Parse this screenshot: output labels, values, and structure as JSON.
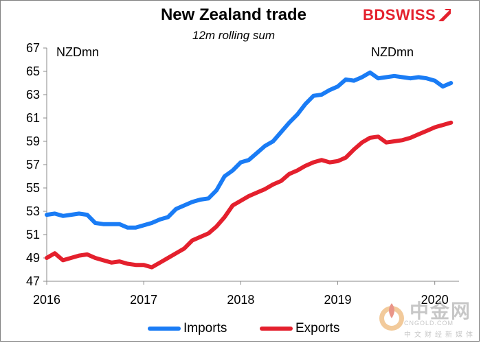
{
  "chart_data": {
    "type": "line",
    "title": "New Zealand trade",
    "subtitle": "12m rolling sum",
    "ylabel_left": "NZDmn",
    "ylabel_right": "NZDmn",
    "xlabel": "",
    "ylim": [
      47,
      67
    ],
    "xlim": [
      2016,
      2020.25
    ],
    "yticks": [
      47,
      49,
      51,
      53,
      55,
      57,
      59,
      61,
      63,
      65,
      67
    ],
    "xticks": [
      {
        "value": 2016,
        "label": "2016"
      },
      {
        "value": 2017,
        "label": "2017"
      },
      {
        "value": 2018,
        "label": "2018"
      },
      {
        "value": 2019,
        "label": "2019"
      },
      {
        "value": 2020,
        "label": "2020"
      }
    ],
    "legend_position": "bottom",
    "series": [
      {
        "name": "Imports",
        "color": "#1a7cf5",
        "x": [
          2016.0,
          2016.083,
          2016.167,
          2016.25,
          2016.333,
          2016.417,
          2016.5,
          2016.583,
          2016.667,
          2016.75,
          2016.833,
          2016.917,
          2017.0,
          2017.083,
          2017.167,
          2017.25,
          2017.333,
          2017.417,
          2017.5,
          2017.583,
          2017.667,
          2017.75,
          2017.833,
          2017.917,
          2018.0,
          2018.083,
          2018.167,
          2018.25,
          2018.333,
          2018.417,
          2018.5,
          2018.583,
          2018.667,
          2018.75,
          2018.833,
          2018.917,
          2019.0,
          2019.083,
          2019.167,
          2019.25,
          2019.333,
          2019.417,
          2019.5,
          2019.583,
          2019.667,
          2019.75,
          2019.833,
          2019.917,
          2020.0,
          2020.083,
          2020.167
        ],
        "values": [
          52.7,
          52.8,
          52.6,
          52.7,
          52.8,
          52.7,
          52.0,
          51.9,
          51.9,
          51.9,
          51.6,
          51.6,
          51.8,
          52.0,
          52.3,
          52.5,
          53.2,
          53.5,
          53.8,
          54.0,
          54.1,
          54.8,
          56.0,
          56.5,
          57.2,
          57.4,
          58.0,
          58.6,
          59.0,
          59.8,
          60.6,
          61.3,
          62.2,
          62.9,
          63.0,
          63.4,
          63.7,
          64.3,
          64.2,
          64.5,
          64.9,
          64.4,
          64.5,
          64.6,
          64.5,
          64.4,
          64.5,
          64.4,
          64.2,
          63.7,
          64.0
        ]
      },
      {
        "name": "Exports",
        "color": "#e4202d",
        "x": [
          2016.0,
          2016.083,
          2016.167,
          2016.25,
          2016.333,
          2016.417,
          2016.5,
          2016.583,
          2016.667,
          2016.75,
          2016.833,
          2016.917,
          2017.0,
          2017.083,
          2017.167,
          2017.25,
          2017.333,
          2017.417,
          2017.5,
          2017.583,
          2017.667,
          2017.75,
          2017.833,
          2017.917,
          2018.0,
          2018.083,
          2018.167,
          2018.25,
          2018.333,
          2018.417,
          2018.5,
          2018.583,
          2018.667,
          2018.75,
          2018.833,
          2018.917,
          2019.0,
          2019.083,
          2019.167,
          2019.25,
          2019.333,
          2019.417,
          2019.5,
          2019.583,
          2019.667,
          2019.75,
          2019.833,
          2019.917,
          2020.0,
          2020.083,
          2020.167
        ],
        "values": [
          49.0,
          49.4,
          48.8,
          49.0,
          49.2,
          49.3,
          49.0,
          48.8,
          48.6,
          48.7,
          48.5,
          48.4,
          48.4,
          48.2,
          48.6,
          49.0,
          49.4,
          49.8,
          50.5,
          50.8,
          51.1,
          51.7,
          52.5,
          53.5,
          53.9,
          54.3,
          54.6,
          54.9,
          55.3,
          55.6,
          56.2,
          56.5,
          56.9,
          57.2,
          57.4,
          57.2,
          57.3,
          57.6,
          58.3,
          58.9,
          59.3,
          59.4,
          58.9,
          59.0,
          59.1,
          59.3,
          59.6,
          59.9,
          60.2,
          60.4,
          60.6
        ]
      }
    ]
  },
  "brand": {
    "part1": "BD",
    "part2": "SWISS"
  },
  "watermark": {
    "title": "中金网",
    "url": "CNGOLD.COM",
    "sub": "中文财经新媒体"
  }
}
